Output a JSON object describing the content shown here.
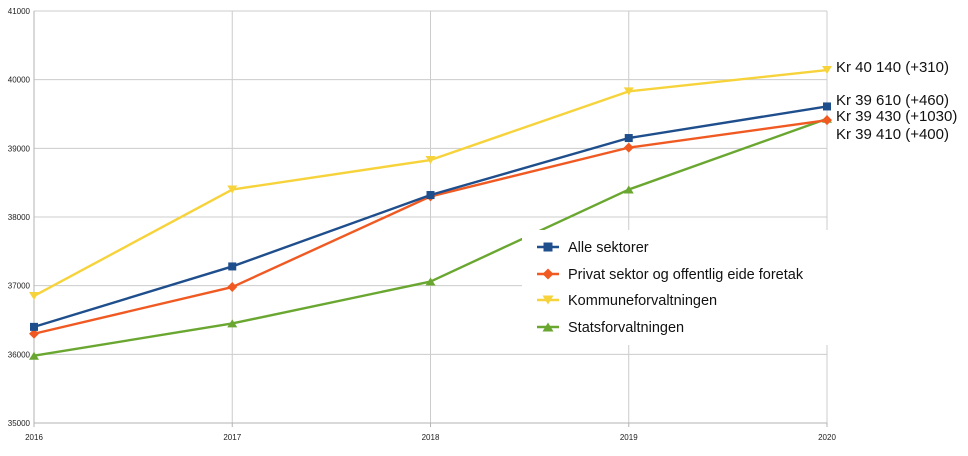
{
  "chart_data": {
    "type": "line",
    "categories": [
      "2016",
      "2017",
      "2018",
      "2019",
      "2020"
    ],
    "ylim": [
      35000,
      41000
    ],
    "y_ticks": [
      "35000",
      "36000",
      "37000",
      "38000",
      "39000",
      "40000",
      "41000"
    ],
    "grid": true,
    "legend_placement": "center-right",
    "series": [
      {
        "name": "Alle sektorer",
        "color": "#1f4e8c",
        "marker": "square",
        "values": [
          36400,
          37280,
          38320,
          39150,
          39610
        ]
      },
      {
        "name": "Privat sektor og offentlig eide foretak",
        "color": "#f05a22",
        "marker": "diamond",
        "values": [
          36300,
          36980,
          38300,
          39010,
          39410
        ]
      },
      {
        "name": "Kommuneforvaltningen",
        "color": "#f7d33b",
        "marker": "triangle-down",
        "values": [
          36850,
          38400,
          38830,
          39830,
          40140
        ]
      },
      {
        "name": "Statsforvaltningen",
        "color": "#6aa731",
        "marker": "triangle-up",
        "values": [
          35980,
          36450,
          37060,
          38400,
          39430
        ]
      }
    ],
    "end_labels": [
      "Kr 40 140  (+310)",
      "Kr 39 610 (+460)",
      "Kr 39 430 (+1030)",
      "Kr 39 410 (+400)"
    ]
  }
}
